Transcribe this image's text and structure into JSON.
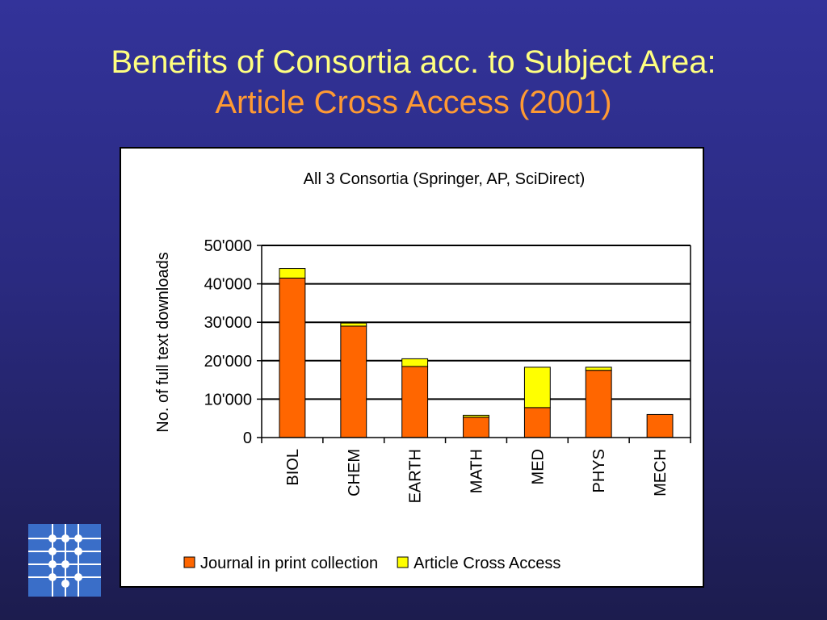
{
  "slide": {
    "title_line1": "Benefits of Consortia acc. to Subject Area:",
    "title_line2": "Article Cross Access (2001)"
  },
  "logo": {
    "icon": "circuit-logo-icon",
    "color": "#3a6ec8"
  },
  "colors": {
    "title_primary": "#ffff80",
    "title_accent": "#ff9a33"
  },
  "chart_data": {
    "type": "bar",
    "stacked": true,
    "title": "All 3 Consortia (Springer, AP, SciDirect)",
    "xlabel": "",
    "ylabel": "No. of full text downloads",
    "categories": [
      "BIOL",
      "CHEM",
      "EARTH",
      "MATH",
      "MED",
      "PHYS",
      "MECH"
    ],
    "series": [
      {
        "name": "Journal in print collection",
        "color": "#ff6600",
        "values": [
          41500,
          29000,
          18500,
          5300,
          7800,
          17500,
          6000
        ]
      },
      {
        "name": "Article Cross Access",
        "color": "#ffff00",
        "values": [
          2500,
          800,
          2000,
          500,
          10500,
          800,
          0
        ]
      }
    ],
    "ylim": [
      0,
      50000
    ],
    "yticks": [
      0,
      10000,
      20000,
      30000,
      40000,
      50000
    ],
    "ytick_labels": [
      "0",
      "10'000",
      "20'000",
      "30'000",
      "40'000",
      "50'000"
    ],
    "grid": true,
    "legend_position": "bottom"
  }
}
